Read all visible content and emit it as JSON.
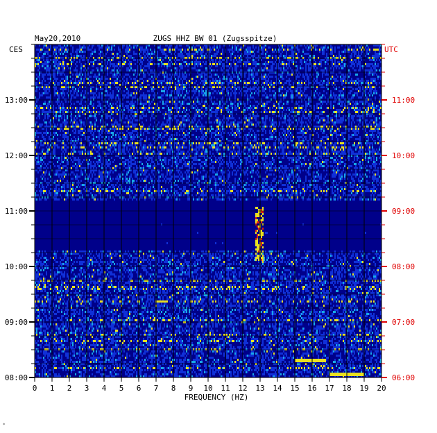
{
  "chart_data": {
    "type": "heatmap",
    "title": "ZUGS HHZ BW 01 (Zugsspitze)",
    "date": "May20,2010",
    "left_tz": "CES",
    "right_tz": "UTC",
    "xlabel": "FREQUENCY (HZ)",
    "xlim": [
      0,
      20
    ],
    "x_ticks": [
      "0",
      "1",
      "2",
      "3",
      "4",
      "5",
      "6",
      "7",
      "8",
      "9",
      "10",
      "11",
      "12",
      "13",
      "14",
      "15",
      "16",
      "17",
      "18",
      "19",
      "20"
    ],
    "ylim_local_hours": [
      8,
      14
    ],
    "y_ticks_left": [
      "13:00",
      "12:00",
      "11:00",
      "10:00",
      "09:00",
      "08:00"
    ],
    "y_ticks_right": [
      "11:00",
      "10:00",
      "09:00",
      "08:00",
      "07:00",
      "06:00"
    ],
    "colors": {
      "background": "#00008a",
      "low": "#1030d8",
      "mid": "#18a8e8",
      "high": "#e8e020",
      "peak": "#e02010",
      "grid": "#000000",
      "right_axis": "#e00000",
      "left_axis": "#000000"
    },
    "quiet_period_local": [
      10.3,
      11.2
    ],
    "persistent_line_hz": 12.9,
    "burst_events": [
      {
        "time_local": 8.3,
        "f_start": 15,
        "f_end": 16.8
      },
      {
        "time_local": 8.05,
        "f_start": 17,
        "f_end": 19
      }
    ]
  }
}
